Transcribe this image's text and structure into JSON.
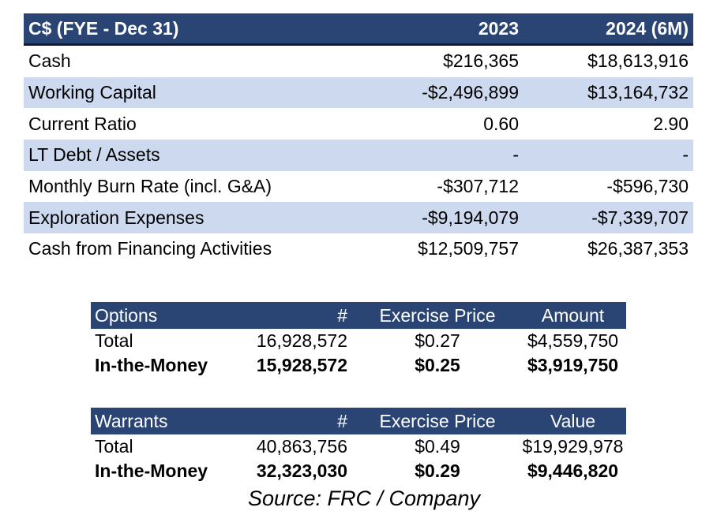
{
  "financials": {
    "header": [
      "C$ (FYE - Dec 31)",
      "2023",
      "2024 (6M)"
    ],
    "rows": [
      [
        "Cash",
        "$216,365",
        "$18,613,916"
      ],
      [
        "Working Capital",
        "-$2,496,899",
        "$13,164,732"
      ],
      [
        "Current Ratio",
        "0.60",
        "2.90"
      ],
      [
        "LT Debt / Assets",
        "-",
        "-"
      ],
      [
        "Monthly Burn Rate (incl. G&A)",
        "-$307,712",
        "-$596,730"
      ],
      [
        "Exploration Expenses",
        "-$9,194,079",
        "-$7,339,707"
      ],
      [
        "Cash from Financing Activities",
        "$12,509,757",
        "$26,387,353"
      ]
    ]
  },
  "options": {
    "header": [
      "Options",
      "#",
      "Exercise Price",
      "Amount"
    ],
    "rows": [
      [
        "Total",
        "16,928,572",
        "$0.27",
        "$4,559,750"
      ],
      [
        "In-the-Money",
        "15,928,572",
        "$0.25",
        "$3,919,750"
      ]
    ]
  },
  "warrants": {
    "header": [
      "Warrants",
      "#",
      "Exercise Price",
      "Value"
    ],
    "rows": [
      [
        "Total",
        "40,863,756",
        "$0.49",
        "$19,929,978"
      ],
      [
        "In-the-Money",
        "32,323,030",
        "$0.29",
        "$9,446,820"
      ]
    ]
  },
  "source": "Source: FRC / Company",
  "colors": {
    "header_bg": "#2a4574",
    "alt_row_bg": "#cdd9ef"
  }
}
